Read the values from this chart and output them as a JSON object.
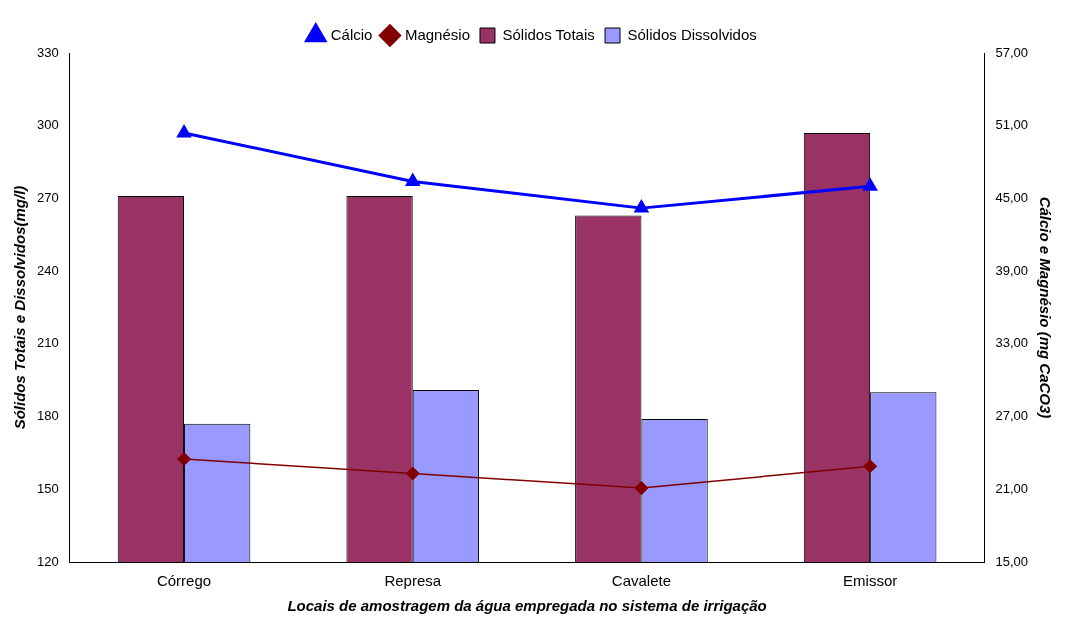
{
  "chart_data": {
    "type": "bar",
    "xlabel": "Locais de amostragem da água empregada no sistema de irrigação",
    "ylabel": "Sólidos Totais e Dissolvidos(mg/l)",
    "y2label": "Cálcio e Magnésio (mg CaCO3)",
    "categories": [
      "Córrego",
      "Represa",
      "Cavalete",
      "Emissor"
    ],
    "series": [
      {
        "name": "Sólidos Totais",
        "color": "#993366",
        "values": [
          271,
          271,
          263,
          297
        ]
      },
      {
        "name": "Sólidos Dissolvidos",
        "color": "#9999ff",
        "values": [
          177,
          191,
          179,
          190
        ]
      },
      {
        "name": "Cálcio",
        "type": "line",
        "axis": "y2",
        "color": "#0000ff",
        "marker": "triangle",
        "values": [
          50.4,
          46.4,
          44.2,
          46.0
        ]
      },
      {
        "name": "Magnésio",
        "type": "line",
        "axis": "y2",
        "color": "#800000",
        "marker": "diamond",
        "values": [
          23.5,
          22.3,
          21.1,
          22.9
        ]
      }
    ],
    "ylim": [
      120,
      330
    ],
    "yticks": [
      120,
      150,
      180,
      210,
      240,
      270,
      300,
      330
    ],
    "y2lim": [
      15,
      57
    ],
    "y2ticks": [
      {
        "value": 15,
        "label": "15,00"
      },
      {
        "value": 21,
        "label": "21,00"
      },
      {
        "value": 27,
        "label": "27,00"
      },
      {
        "value": 33,
        "label": "33,00"
      },
      {
        "value": 39,
        "label": "39,00"
      },
      {
        "value": 45,
        "label": "45,00"
      },
      {
        "value": 51,
        "label": "51,00"
      },
      {
        "value": 57,
        "label": "57,00"
      }
    ],
    "grid": false,
    "legend": "top"
  }
}
